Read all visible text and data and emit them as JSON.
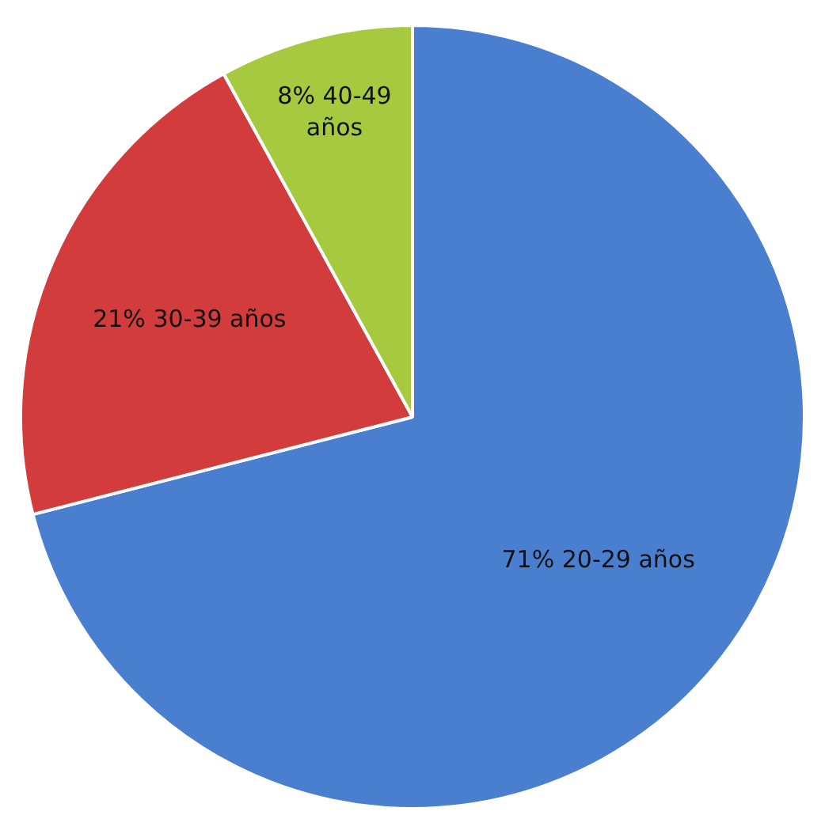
{
  "chart_data": {
    "type": "pie",
    "categories": [
      "20-29 años",
      "30-39 años",
      "40-49 años"
    ],
    "values": [
      71,
      21,
      8
    ],
    "value_labels": [
      "71%",
      "21%",
      "8%"
    ],
    "colors": [
      "#4a7fd0",
      "#d23c3c",
      "#a6c93f"
    ],
    "legend": false
  }
}
